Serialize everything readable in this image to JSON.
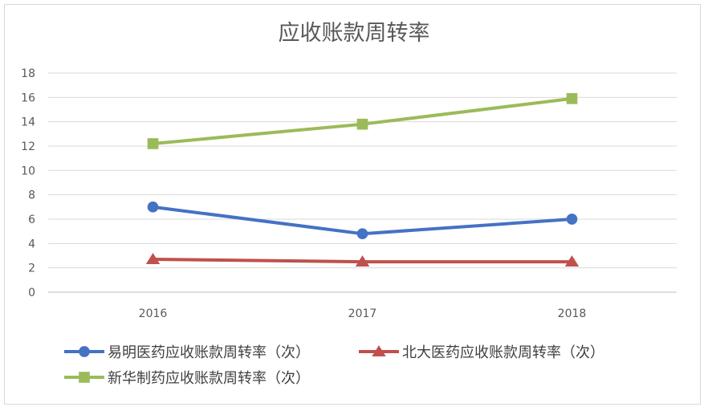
{
  "chart_data": {
    "type": "line",
    "title": "应收账款周转率",
    "categories": [
      "2016",
      "2017",
      "2018"
    ],
    "yticks": [
      "0",
      "2",
      "4",
      "6",
      "8",
      "10",
      "12",
      "14",
      "16",
      "18"
    ],
    "ylim": [
      0,
      18
    ],
    "grid": true,
    "legend_position": "bottom",
    "series": [
      {
        "name": "易明医药应收账款周转率（次）",
        "values": [
          7.0,
          4.8,
          6.0
        ],
        "color": "#4472c4",
        "marker": "circle"
      },
      {
        "name": "北大医药应收账款周转率（次）",
        "values": [
          2.7,
          2.5,
          2.5
        ],
        "color": "#c0504d",
        "marker": "triangle"
      },
      {
        "name": "新华制药应收账款周转率（次）",
        "values": [
          12.2,
          13.8,
          15.9
        ],
        "color": "#9bbb59",
        "marker": "square"
      }
    ]
  }
}
